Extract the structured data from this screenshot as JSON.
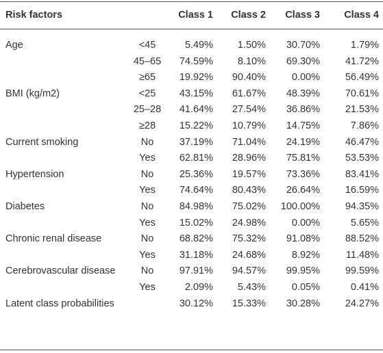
{
  "table": {
    "header": {
      "risk_factors": "Risk factors",
      "classes": [
        "Class 1",
        "Class 2",
        "Class 3",
        "Class 4"
      ]
    },
    "groups": [
      {
        "label": "Age",
        "rows": [
          {
            "level": "<45",
            "values": [
              "5.49%",
              "1.50%",
              "30.70%",
              "1.79%"
            ]
          },
          {
            "level": "45–65",
            "values": [
              "74.59%",
              "8.10%",
              "69.30%",
              "41.72%"
            ]
          },
          {
            "level": "≥65",
            "values": [
              "19.92%",
              "90.40%",
              "0.00%",
              "56.49%"
            ]
          }
        ]
      },
      {
        "label": "BMI (kg/m2)",
        "rows": [
          {
            "level": "<25",
            "values": [
              "43.15%",
              "61.67%",
              "48.39%",
              "70.61%"
            ]
          },
          {
            "level": "25–28",
            "values": [
              "41.64%",
              "27.54%",
              "36.86%",
              "21.53%"
            ]
          },
          {
            "level": "≥28",
            "values": [
              "15.22%",
              "10.79%",
              "14.75%",
              "7.86%"
            ]
          }
        ]
      },
      {
        "label": "Current smoking",
        "rows": [
          {
            "level": "No",
            "values": [
              "37.19%",
              "71.04%",
              "24.19%",
              "46.47%"
            ]
          },
          {
            "level": "Yes",
            "values": [
              "62.81%",
              "28.96%",
              "75.81%",
              "53.53%"
            ]
          }
        ]
      },
      {
        "label": "Hypertension",
        "rows": [
          {
            "level": "No",
            "values": [
              "25.36%",
              "19.57%",
              "73.36%",
              "83.41%"
            ]
          },
          {
            "level": "Yes",
            "values": [
              "74.64%",
              "80.43%",
              "26.64%",
              "16.59%"
            ]
          }
        ]
      },
      {
        "label": "Diabetes",
        "rows": [
          {
            "level": "No",
            "values": [
              "84.98%",
              "75.02%",
              "100.00%",
              "94.35%"
            ]
          },
          {
            "level": "Yes",
            "values": [
              "15.02%",
              "24.98%",
              "0.00%",
              "5.65%"
            ]
          }
        ]
      },
      {
        "label": "Chronic renal disease",
        "rows": [
          {
            "level": "No",
            "values": [
              "68.82%",
              "75.32%",
              "91.08%",
              "88.52%"
            ]
          },
          {
            "level": "Yes",
            "values": [
              "31.18%",
              "24.68%",
              "8.92%",
              "11.48%"
            ]
          }
        ]
      },
      {
        "label": "Cerebrovascular disease",
        "rows": [
          {
            "level": "No",
            "values": [
              "97.91%",
              "94.57%",
              "99.95%",
              "99.59%"
            ]
          },
          {
            "level": "Yes",
            "values": [
              "2.09%",
              "5.43%",
              "0.05%",
              "0.41%"
            ]
          }
        ]
      },
      {
        "label": "Latent class probabilities",
        "rows": [
          {
            "values": [
              "30.12%",
              "15.33%",
              "30.28%",
              "24.27%"
            ]
          }
        ]
      }
    ]
  }
}
